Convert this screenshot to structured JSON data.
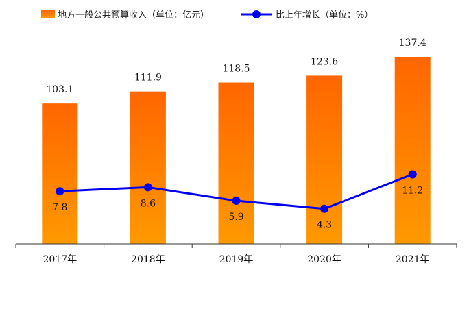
{
  "chart_data": {
    "type": "bar",
    "categories": [
      "2017年",
      "2018年",
      "2019年",
      "2020年",
      "2021年"
    ],
    "series": [
      {
        "name": "地方一般公共预算收入（单位：亿元）",
        "type": "bar",
        "values": [
          103.1,
          111.9,
          118.5,
          123.6,
          137.4
        ]
      },
      {
        "name": "比上年增长（单位：%）",
        "type": "line",
        "values": [
          7.8,
          8.6,
          5.9,
          4.3,
          11.2
        ]
      }
    ],
    "legend_position": "top-left",
    "grid": false,
    "colors": {
      "bar_top": "#FF6600",
      "bar_bottom": "#FF9900",
      "line": "#0000EE",
      "axis": "#333333"
    }
  }
}
